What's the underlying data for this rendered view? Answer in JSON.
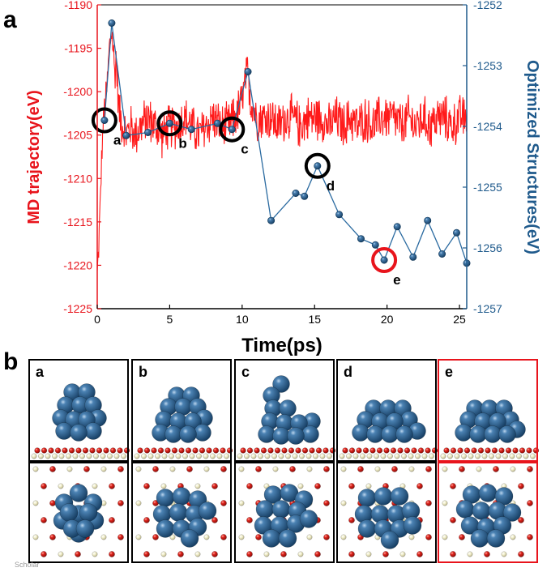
{
  "panel_labels": {
    "a": "a",
    "b": "b"
  },
  "watermark": "Scholar",
  "colors": {
    "md_line": "#ff1a1a",
    "opt_line": "#2a6aa0",
    "opt_marker": "#1f5a8c",
    "left_axis": "#e8141c",
    "right_axis": "#1f5a8c",
    "circle_black": "#000000",
    "circle_red": "#e8141c",
    "box_black": "#000000",
    "box_red": "#e8141c",
    "cluster": "#2a5f8f",
    "oxygen": "#dd1a1a",
    "surface_metal": "#f2efcc"
  },
  "chart_data": {
    "type": "line",
    "title": "",
    "xlabel": "Time(ps)",
    "ylabel_left": "MD trajectory(eV)",
    "ylabel_right": "Optimized Structures(eV)",
    "xlim": [
      0,
      25.5
    ],
    "ylim_left": [
      -1225,
      -1190
    ],
    "ylim_right": [
      -1257,
      -1252
    ],
    "x_ticks": [
      0,
      5,
      10,
      15,
      20,
      25
    ],
    "x_tick_labels": [
      "0",
      "5",
      "10",
      "15",
      "20",
      "25"
    ],
    "y_left_ticks": [
      -1225,
      -1220,
      -1215,
      -1210,
      -1205,
      -1200,
      -1195,
      -1190
    ],
    "y_left_tick_labels": [
      "-1225",
      "-1220",
      "-1215",
      "-1210",
      "-1205",
      "-1200",
      "-1195",
      "-1190"
    ],
    "y_right_ticks": [
      -1257,
      -1256,
      -1255,
      -1254,
      -1253,
      -1252
    ],
    "y_right_tick_labels": [
      "-1257",
      "-1256",
      "-1255",
      "-1254",
      "-1253",
      "-1252"
    ],
    "series": [
      {
        "name": "MD trajectory",
        "axis": "left",
        "style": "line",
        "color": "#ff1a1a",
        "x": [
          0.0,
          0.1,
          0.2,
          0.3,
          0.4,
          0.5,
          0.6,
          0.7,
          0.8,
          0.9,
          1.0,
          1.1,
          1.2,
          1.3,
          1.4,
          1.5,
          1.6,
          1.8,
          2.0,
          2.3,
          2.6,
          3.0,
          3.5,
          4.0,
          4.5,
          5.0,
          5.5,
          6.0,
          6.5,
          7.0,
          7.5,
          8.0,
          8.5,
          9.0,
          9.5,
          9.8,
          10.0,
          10.2,
          10.4,
          10.6,
          10.8,
          11.0,
          11.5,
          12.0,
          12.5,
          13.0,
          13.5,
          14.0,
          14.5,
          15.0,
          15.5,
          16.0,
          16.5,
          17.0,
          17.5,
          18.0,
          18.5,
          19.0,
          19.5,
          20.0,
          20.5,
          21.0,
          21.5,
          22.0,
          22.5,
          23.0,
          23.5,
          24.0,
          24.5,
          25.0,
          25.5
        ],
        "values": [
          -1221,
          -1218,
          -1213,
          -1208,
          -1204,
          -1202,
          -1201,
          -1199,
          -1196,
          -1194,
          -1193,
          -1195,
          -1198,
          -1196,
          -1199,
          -1202,
          -1203,
          -1204,
          -1205,
          -1204,
          -1205,
          -1204,
          -1203,
          -1204,
          -1205,
          -1204,
          -1204,
          -1203,
          -1204,
          -1205,
          -1204,
          -1203,
          -1204,
          -1204,
          -1203,
          -1202,
          -1201,
          -1199,
          -1198,
          -1201,
          -1202,
          -1203,
          -1203,
          -1203,
          -1204,
          -1203,
          -1203,
          -1204,
          -1203,
          -1203,
          -1203,
          -1204,
          -1203,
          -1204,
          -1203,
          -1204,
          -1203,
          -1204,
          -1203,
          -1203,
          -1203,
          -1204,
          -1203,
          -1204,
          -1203,
          -1204,
          -1203,
          -1203,
          -1204,
          -1203,
          -1203
        ],
        "noise_amplitude": 3
      },
      {
        "name": "Optimized Structures",
        "axis": "right",
        "style": "line+markers",
        "color": "#2a6aa0",
        "x": [
          0.5,
          1.0,
          2.0,
          3.5,
          5.0,
          6.5,
          8.3,
          9.3,
          10.4,
          12.0,
          13.7,
          14.3,
          15.2,
          16.7,
          18.2,
          19.2,
          19.8,
          20.7,
          21.8,
          22.8,
          23.8,
          24.8,
          25.5
        ],
        "values": [
          -1253.9,
          -1252.3,
          -1254.15,
          -1254.1,
          -1253.95,
          -1254.05,
          -1253.95,
          -1254.05,
          -1253.1,
          -1255.55,
          -1255.1,
          -1255.15,
          -1254.65,
          -1255.45,
          -1255.85,
          -1255.95,
          -1256.2,
          -1255.65,
          -1256.15,
          -1255.55,
          -1256.1,
          -1255.75,
          -1256.25
        ]
      }
    ],
    "annotations": [
      {
        "label": "a",
        "x": 0.5,
        "y_right": -1253.9,
        "circle": "black"
      },
      {
        "label": "b",
        "x": 5.0,
        "y_right": -1253.95,
        "circle": "black"
      },
      {
        "label": "c",
        "x": 9.3,
        "y_right": -1254.05,
        "circle": "black"
      },
      {
        "label": "d",
        "x": 15.2,
        "y_right": -1254.65,
        "circle": "black"
      },
      {
        "label": "e",
        "x": 19.8,
        "y_right": -1256.2,
        "circle": "red"
      }
    ]
  },
  "structures": {
    "labels": [
      "a",
      "b",
      "c",
      "d",
      "e"
    ],
    "highlight": "e",
    "views": [
      "side",
      "top"
    ]
  }
}
